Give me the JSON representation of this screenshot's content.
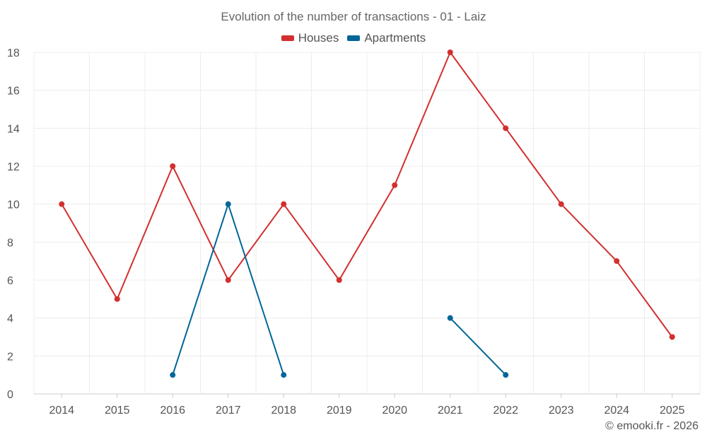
{
  "chart_data": {
    "type": "line",
    "title": "Evolution of the number of transactions - 01 - Laiz",
    "categories": [
      "2014",
      "2015",
      "2016",
      "2017",
      "2018",
      "2019",
      "2020",
      "2021",
      "2022",
      "2023",
      "2024",
      "2025"
    ],
    "ylim": [
      0,
      18
    ],
    "yticks": [
      0,
      2,
      4,
      6,
      8,
      10,
      12,
      14,
      16,
      18
    ],
    "grid": true,
    "legend_position": "top-center",
    "series": [
      {
        "name": "Houses",
        "color": "#d32f2f",
        "values": [
          10,
          5,
          12,
          6,
          10,
          6,
          11,
          18,
          14,
          10,
          7,
          3
        ]
      },
      {
        "name": "Apartments",
        "color": "#006699",
        "values": [
          null,
          null,
          1,
          10,
          1,
          null,
          null,
          4,
          1,
          null,
          null,
          null
        ]
      }
    ]
  },
  "credit": "© emooki.fr - 2026"
}
